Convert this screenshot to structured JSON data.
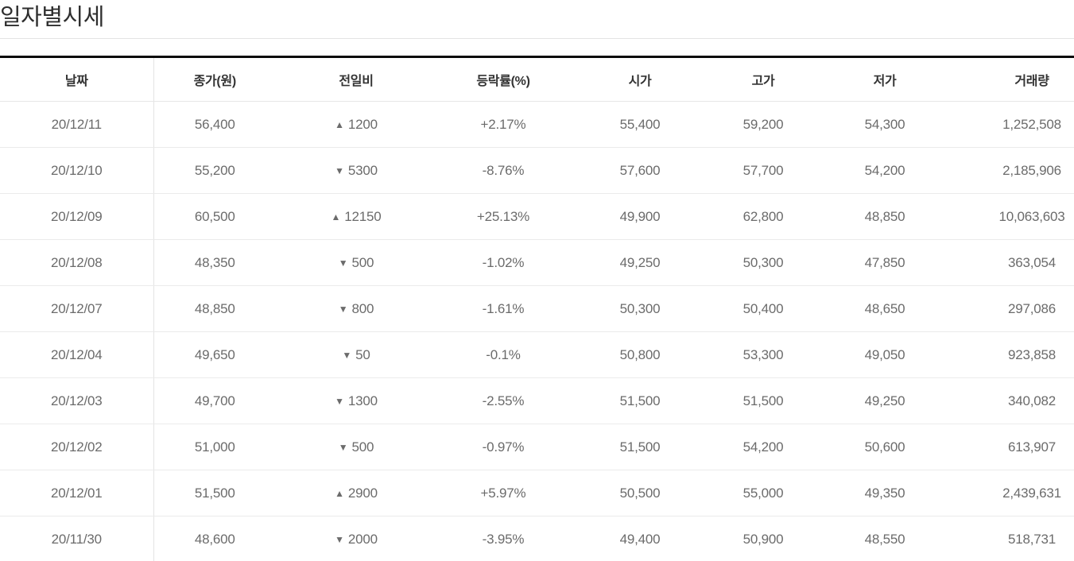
{
  "title": "일자별시세",
  "icons": {
    "up_triangle": "▲",
    "down_triangle": "▼"
  },
  "colors": {
    "up": "#dc1322",
    "down": "#4617e9",
    "header_text": "#333333",
    "cell_text": "#6b6b6b"
  },
  "table": {
    "headers": [
      "날짜",
      "종가(원)",
      "전일비",
      "등락률(%)",
      "시가",
      "고가",
      "저가",
      "거래량"
    ],
    "rows": [
      {
        "date": "20/12/11",
        "close": "56,400",
        "direction": "up",
        "change": "1200",
        "rate": "+2.17%",
        "open": "55,400",
        "high": "59,200",
        "low": "54,300",
        "volume": "1,252,508"
      },
      {
        "date": "20/12/10",
        "close": "55,200",
        "direction": "down",
        "change": "5300",
        "rate": "-8.76%",
        "open": "57,600",
        "high": "57,700",
        "low": "54,200",
        "volume": "2,185,906"
      },
      {
        "date": "20/12/09",
        "close": "60,500",
        "direction": "up",
        "change": "12150",
        "rate": "+25.13%",
        "open": "49,900",
        "high": "62,800",
        "low": "48,850",
        "volume": "10,063,603"
      },
      {
        "date": "20/12/08",
        "close": "48,350",
        "direction": "down",
        "change": "500",
        "rate": "-1.02%",
        "open": "49,250",
        "high": "50,300",
        "low": "47,850",
        "volume": "363,054"
      },
      {
        "date": "20/12/07",
        "close": "48,850",
        "direction": "down",
        "change": "800",
        "rate": "-1.61%",
        "open": "50,300",
        "high": "50,400",
        "low": "48,650",
        "volume": "297,086"
      },
      {
        "date": "20/12/04",
        "close": "49,650",
        "direction": "down",
        "change": "50",
        "rate": "-0.1%",
        "open": "50,800",
        "high": "53,300",
        "low": "49,050",
        "volume": "923,858"
      },
      {
        "date": "20/12/03",
        "close": "49,700",
        "direction": "down",
        "change": "1300",
        "rate": "-2.55%",
        "open": "51,500",
        "high": "51,500",
        "low": "49,250",
        "volume": "340,082"
      },
      {
        "date": "20/12/02",
        "close": "51,000",
        "direction": "down",
        "change": "500",
        "rate": "-0.97%",
        "open": "51,500",
        "high": "54,200",
        "low": "50,600",
        "volume": "613,907"
      },
      {
        "date": "20/12/01",
        "close": "51,500",
        "direction": "up",
        "change": "2900",
        "rate": "+5.97%",
        "open": "50,500",
        "high": "55,000",
        "low": "49,350",
        "volume": "2,439,631"
      },
      {
        "date": "20/11/30",
        "close": "48,600",
        "direction": "down",
        "change": "2000",
        "rate": "-3.95%",
        "open": "49,400",
        "high": "50,900",
        "low": "48,550",
        "volume": "518,731"
      }
    ]
  }
}
